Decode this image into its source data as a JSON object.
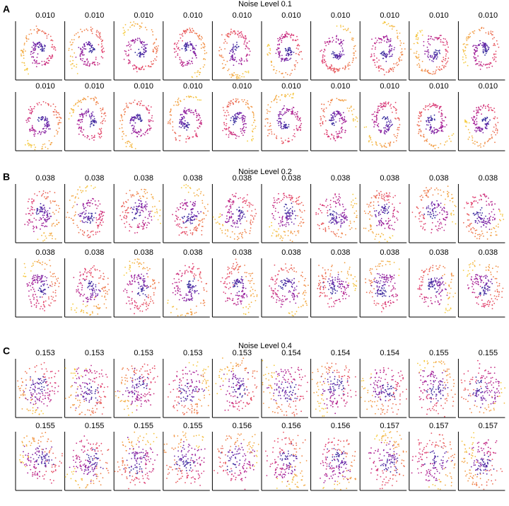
{
  "figure": {
    "sections": [
      {
        "letter": "A",
        "title": "Noise Level 0.1",
        "panels": [
          "0.010",
          "0.010",
          "0.010",
          "0.010",
          "0.010",
          "0.010",
          "0.010",
          "0.010",
          "0.010",
          "0.010",
          "0.010",
          "0.010",
          "0.010",
          "0.010",
          "0.010",
          "0.010",
          "0.010",
          "0.010",
          "0.010",
          "0.010"
        ]
      },
      {
        "letter": "B",
        "title": "Noise Level 0.2",
        "panels": [
          "0.038",
          "0.038",
          "0.038",
          "0.038",
          "0.038",
          "0.038",
          "0.038",
          "0.038",
          "0.038",
          "0.038",
          "0.038",
          "0.038",
          "0.038",
          "0.038",
          "0.038",
          "0.038",
          "0.038",
          "0.038",
          "0.038",
          "0.038"
        ]
      },
      {
        "letter": "C",
        "title": "Noise Level 0.4",
        "panels": [
          "0.153",
          "0.153",
          "0.153",
          "0.153",
          "0.153",
          "0.154",
          "0.154",
          "0.154",
          "0.155",
          "0.155",
          "0.155",
          "0.155",
          "0.155",
          "0.155",
          "0.156",
          "0.156",
          "0.156",
          "0.157",
          "0.157",
          "0.157"
        ]
      }
    ]
  }
}
